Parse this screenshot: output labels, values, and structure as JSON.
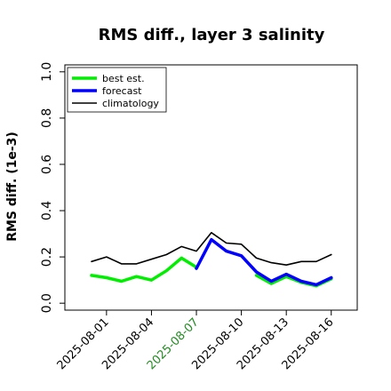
{
  "chart_data": {
    "type": "line",
    "title": "RMS diff., layer 3 salinity",
    "xlabel": "",
    "ylabel": "RMS diff. (1e-3)",
    "x": [
      "2025-07-31",
      "2025-08-01",
      "2025-08-02",
      "2025-08-03",
      "2025-08-04",
      "2025-08-05",
      "2025-08-06",
      "2025-08-07",
      "2025-08-08",
      "2025-08-09",
      "2025-08-10",
      "2025-08-11",
      "2025-08-12",
      "2025-08-13",
      "2025-08-14",
      "2025-08-15",
      "2025-08-16"
    ],
    "xticks": [
      "2025-08-01",
      "2025-08-04",
      "2025-08-07",
      "2025-08-10",
      "2025-08-13",
      "2025-08-16"
    ],
    "highlight_tick": "2025-08-07",
    "highlight_color": "#228b22",
    "ylim": [
      -0.03,
      1.03
    ],
    "yticks": [
      "0.0",
      "0.2",
      "0.4",
      "0.6",
      "0.8",
      "1.0"
    ],
    "legend_position": "top-left",
    "grid": false,
    "series": [
      {
        "name": "best est.",
        "color": "#00ee00",
        "width": 3.5,
        "values": [
          0.12,
          0.11,
          0.095,
          0.115,
          0.1,
          0.14,
          0.195,
          0.155,
          null,
          null,
          null,
          0.12,
          0.085,
          0.115,
          0.09,
          0.075,
          0.105
        ]
      },
      {
        "name": "forecast",
        "color": "#0000ff",
        "width": 3.5,
        "values": [
          null,
          null,
          null,
          null,
          null,
          null,
          null,
          0.15,
          0.275,
          0.225,
          0.205,
          0.135,
          0.095,
          0.125,
          0.095,
          0.08,
          0.11
        ]
      },
      {
        "name": "climatology",
        "color": "#000000",
        "width": 1.6,
        "values": [
          0.18,
          0.2,
          0.17,
          0.17,
          0.19,
          0.21,
          0.245,
          0.225,
          0.305,
          0.26,
          0.255,
          0.195,
          0.175,
          0.165,
          0.18,
          0.18,
          0.21
        ]
      }
    ]
  }
}
